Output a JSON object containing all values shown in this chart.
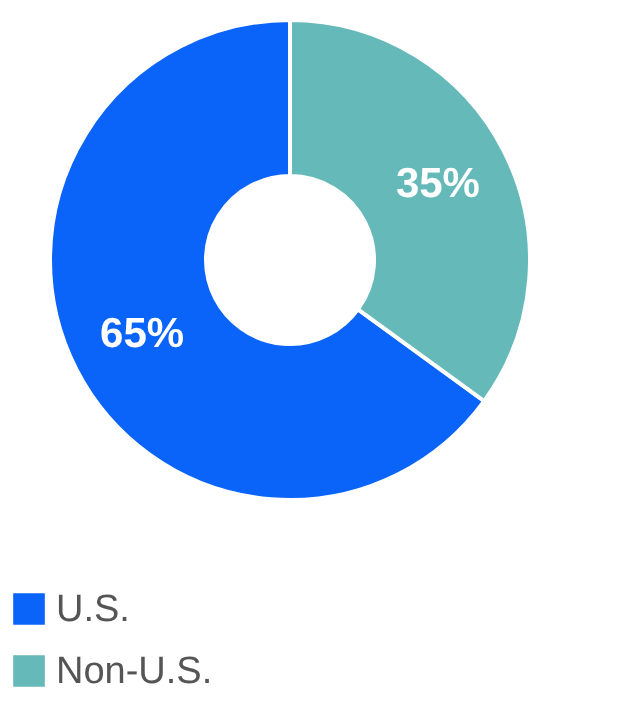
{
  "chart_data": {
    "type": "donut",
    "categories": [
      "U.S.",
      "Non-U.S."
    ],
    "values": [
      65,
      35
    ],
    "colors": [
      "#0a64fa",
      "#66b9b9"
    ],
    "value_labels": [
      "65%",
      "35%"
    ],
    "legend": "bottom"
  }
}
